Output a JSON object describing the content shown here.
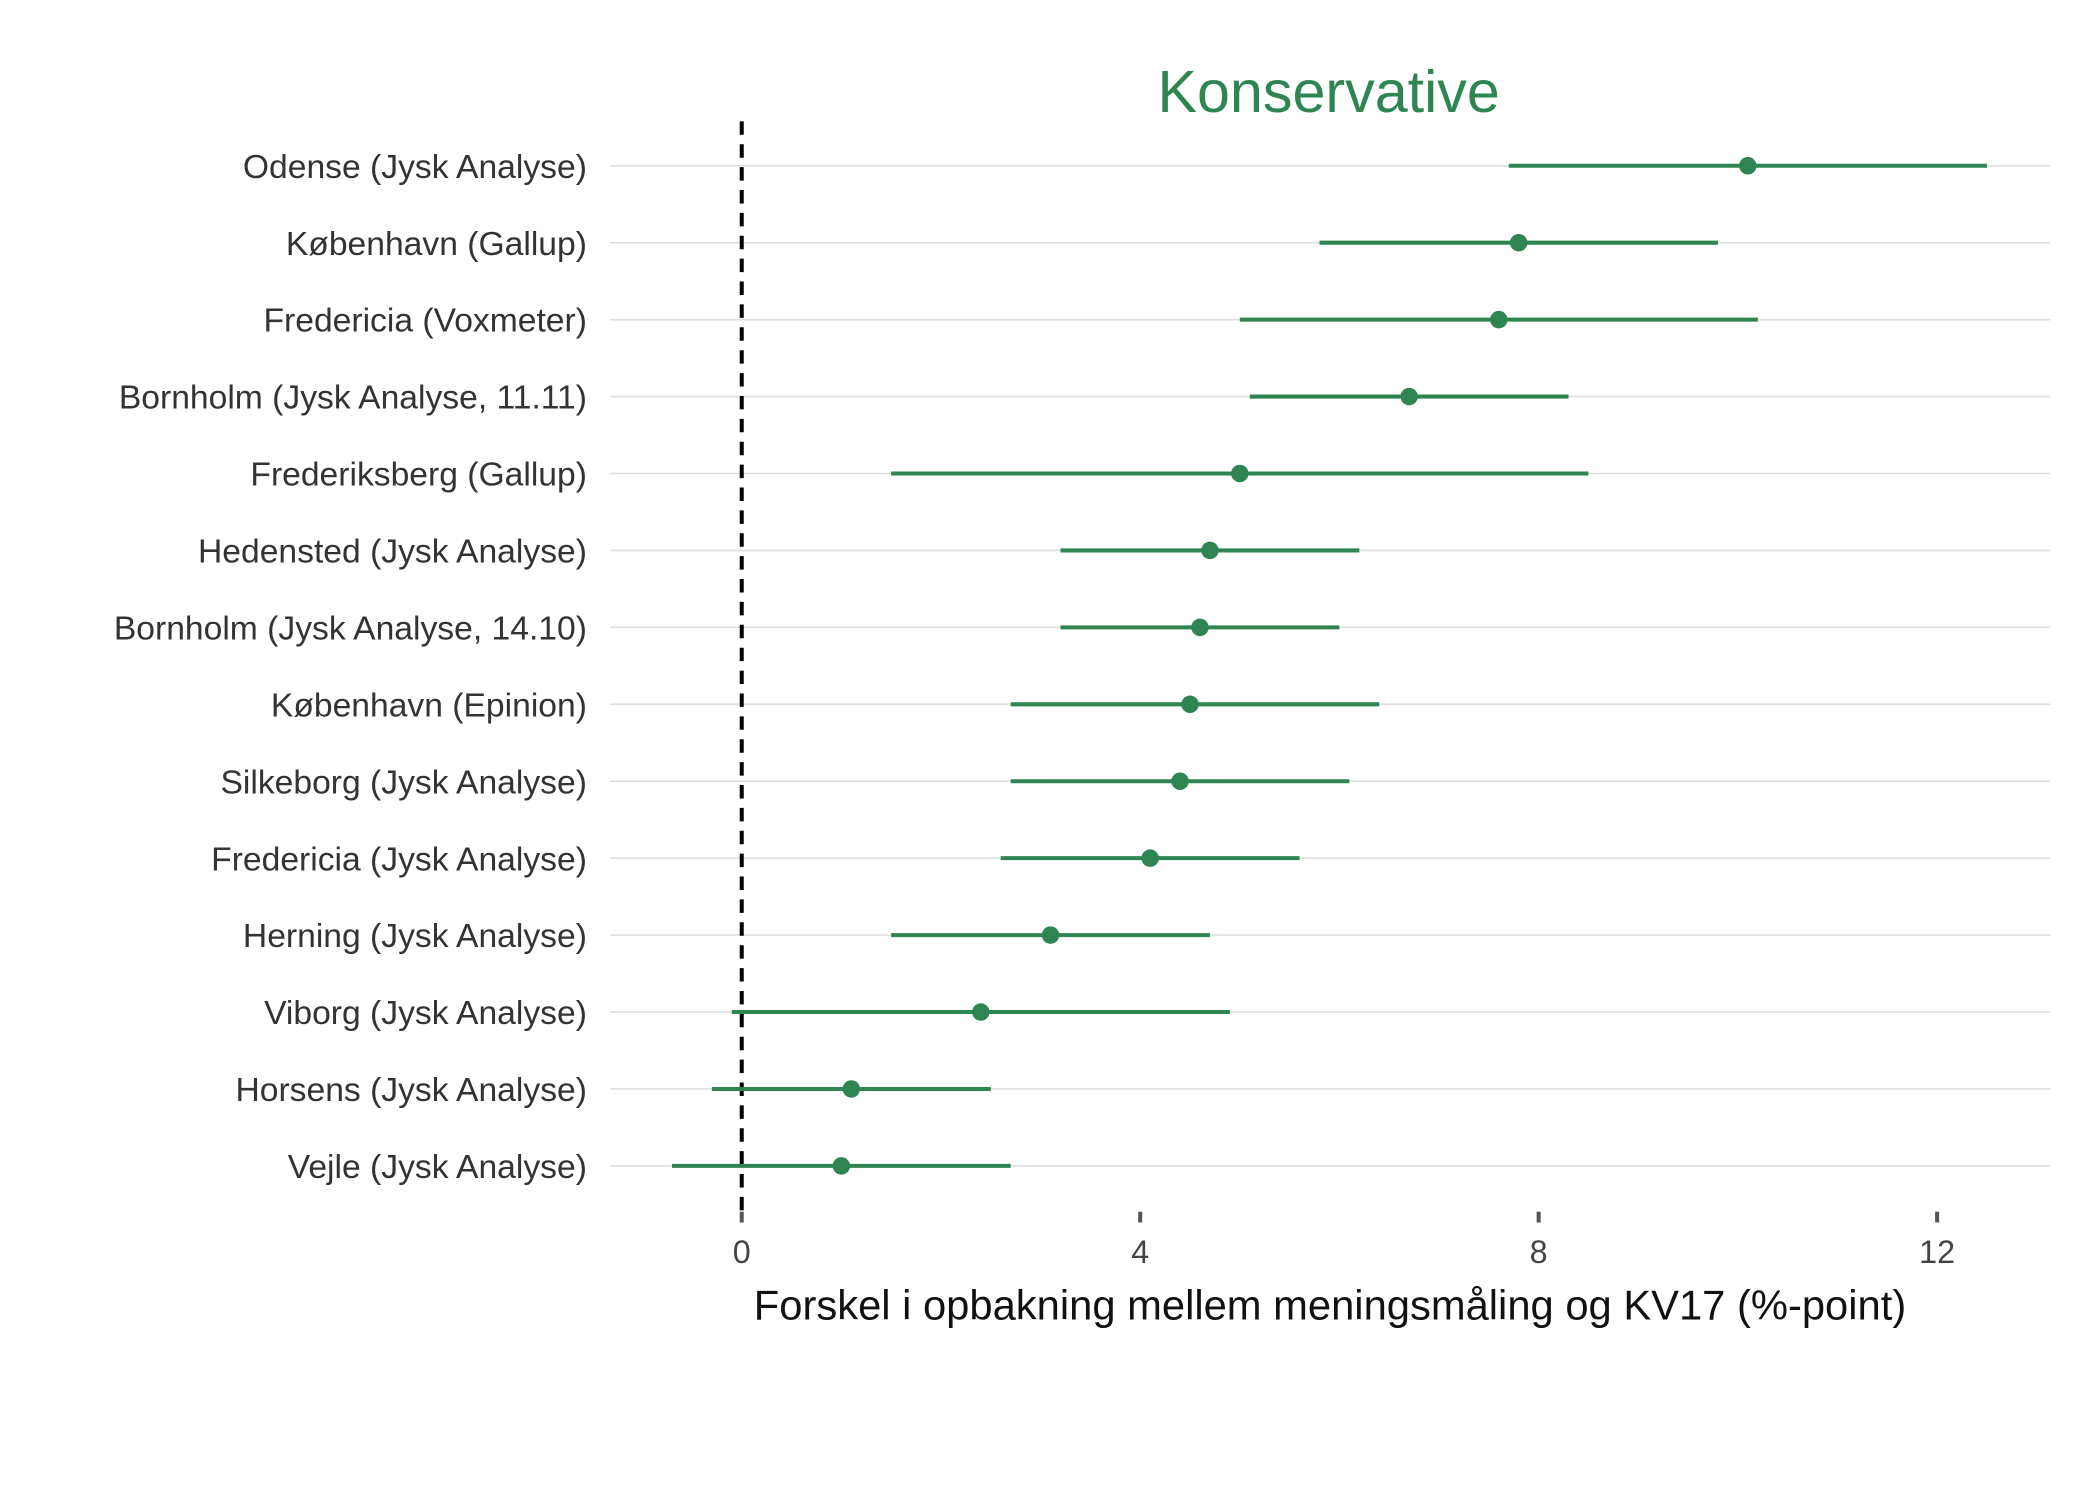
{
  "chart_data": {
    "type": "scatter",
    "subtype": "point-range",
    "title": "Konservative",
    "xlabel": "Forskel i opbakning mellem meningsmåling og KV17 (%-point)",
    "ylabel": "",
    "xlim": [
      -1.4,
      13.1
    ],
    "xticks": [
      0,
      4,
      8,
      12
    ],
    "xtick_labels": [
      "0",
      "4",
      "8",
      "12"
    ],
    "grid": "horizontal",
    "reference_line": {
      "x": 0,
      "style": "dashed"
    },
    "color": "#2e8552",
    "categories": [
      "Odense (Jysk Analyse)",
      "København (Gallup)",
      "Fredericia (Voxmeter)",
      "Bornholm (Jysk Analyse, 11.11)",
      "Frederiksberg (Gallup)",
      "Hedensted (Jysk Analyse)",
      "Bornholm (Jysk Analyse, 14.10)",
      "København (Epinion)",
      "Silkeborg (Jysk Analyse)",
      "Fredericia (Jysk Analyse)",
      "Herning (Jysk Analyse)",
      "Viborg (Jysk Analyse)",
      "Horsens (Jysk Analyse)",
      "Vejle (Jysk Analyse)"
    ],
    "values": [
      10.1,
      7.8,
      7.6,
      6.7,
      5.0,
      4.7,
      4.6,
      4.5,
      4.4,
      4.1,
      3.1,
      2.4,
      1.1,
      1.0
    ],
    "lower": [
      7.7,
      5.8,
      5.0,
      5.1,
      1.5,
      3.2,
      3.2,
      2.7,
      2.7,
      2.6,
      1.5,
      -0.1,
      -0.3,
      -0.7
    ],
    "upper": [
      12.5,
      9.8,
      10.2,
      8.3,
      8.5,
      6.2,
      6.0,
      6.4,
      6.1,
      5.6,
      4.7,
      4.9,
      2.5,
      2.7
    ]
  }
}
